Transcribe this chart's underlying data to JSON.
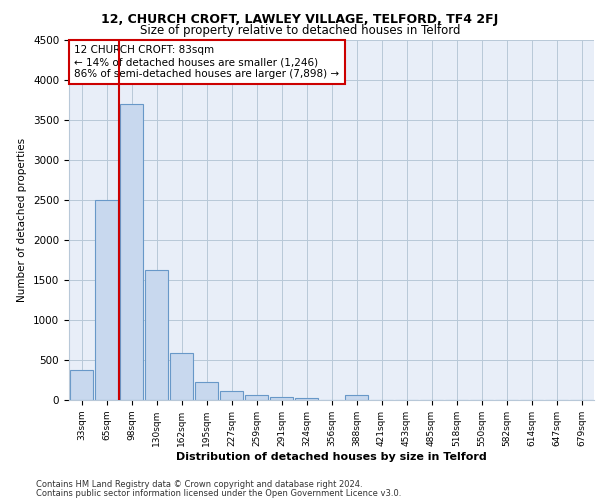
{
  "title1": "12, CHURCH CROFT, LAWLEY VILLAGE, TELFORD, TF4 2FJ",
  "title2": "Size of property relative to detached houses in Telford",
  "xlabel": "Distribution of detached houses by size in Telford",
  "ylabel": "Number of detached properties",
  "categories": [
    "33sqm",
    "65sqm",
    "98sqm",
    "130sqm",
    "162sqm",
    "195sqm",
    "227sqm",
    "259sqm",
    "291sqm",
    "324sqm",
    "356sqm",
    "388sqm",
    "421sqm",
    "453sqm",
    "485sqm",
    "518sqm",
    "550sqm",
    "582sqm",
    "614sqm",
    "647sqm",
    "679sqm"
  ],
  "values": [
    370,
    2500,
    3700,
    1630,
    590,
    230,
    110,
    65,
    40,
    30,
    0,
    60,
    0,
    0,
    0,
    0,
    0,
    0,
    0,
    0,
    0
  ],
  "bar_color": "#c8d8ee",
  "bar_edge_color": "#6898c8",
  "marker_line_color": "#cc0000",
  "annotation_line1": "12 CHURCH CROFT: 83sqm",
  "annotation_line2": "← 14% of detached houses are smaller (1,246)",
  "annotation_line3": "86% of semi-detached houses are larger (7,898) →",
  "annotation_box_color": "#ffffff",
  "annotation_box_edge": "#cc0000",
  "ylim": [
    0,
    4500
  ],
  "yticks": [
    0,
    500,
    1000,
    1500,
    2000,
    2500,
    3000,
    3500,
    4000,
    4500
  ],
  "footer1": "Contains HM Land Registry data © Crown copyright and database right 2024.",
  "footer2": "Contains public sector information licensed under the Open Government Licence v3.0.",
  "bg_color": "#e8eef8",
  "fig_bg_color": "#ffffff"
}
